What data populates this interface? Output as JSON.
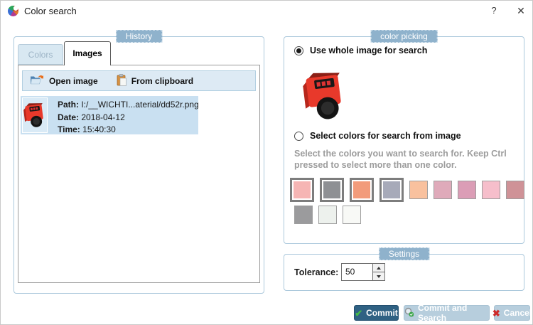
{
  "window": {
    "title": "Color search",
    "help": "?",
    "close": "✕"
  },
  "history": {
    "label": "History",
    "tabs": [
      {
        "label": "Colors"
      },
      {
        "label": "Images"
      }
    ],
    "toolbar": {
      "open_image": "Open image",
      "from_clipboard": "From clipboard"
    },
    "item": {
      "path_label": "Path:",
      "path_value": "I:/__WICHTI...aterial/dd52r.png",
      "date_label": "Date:",
      "date_value": "2018-04-12",
      "time_label": "Time:",
      "time_value": "15:40:30"
    }
  },
  "color_picking": {
    "label": "color picking",
    "use_whole_image": "Use whole image for search",
    "select_colors": "Select colors for search from image",
    "hint": "Select the colors you want to search for. Keep Ctrl pressed to select more than one color.",
    "swatch_rows": [
      [
        {
          "color": "#f6b5b4",
          "selected": true
        },
        {
          "color": "#8e9094",
          "selected": true
        },
        {
          "color": "#f29b7b",
          "selected": true
        },
        {
          "color": "#a7aab9",
          "selected": true
        },
        {
          "color": "#f9c19e",
          "selected": false
        },
        {
          "color": "#dfaaba",
          "selected": false
        },
        {
          "color": "#db9db6",
          "selected": false
        },
        {
          "color": "#f6becb",
          "selected": false
        },
        {
          "color": "#cf9297",
          "selected": false
        }
      ],
      [
        {
          "color": "#9b9b9d",
          "selected": false
        },
        {
          "color": "#edf1ed",
          "selected": false
        },
        {
          "color": "#f8f9f6",
          "selected": false
        }
      ]
    ]
  },
  "settings": {
    "label": "Settings",
    "tolerance_label": "Tolerance:",
    "tolerance_value": "50"
  },
  "actions": {
    "commit": "Commit",
    "commit_and_search": "Commit and Search",
    "cancel": "Cancel"
  },
  "palette": {
    "accent_badge": "#8fb2cc",
    "selection_bg": "#c9e0f1",
    "toolbar_bg": "#ddeaf4",
    "commit_bg": "#2f6183",
    "secondary_btn_bg": "#b7cedd",
    "group_border": "#abc8dc"
  }
}
